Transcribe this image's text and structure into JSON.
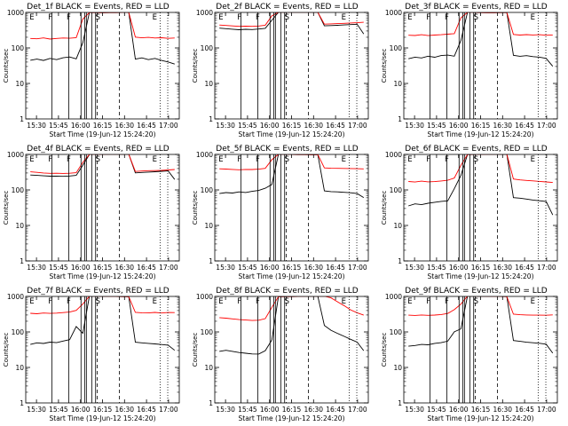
{
  "chart_data": [
    {
      "type": "line",
      "title": "Det_1f BLACK = Events, RED = LLD",
      "xlabel": "Start Time (19-Jun-12 15:24:20)",
      "ylabel": "Counts/sec",
      "x_ticks": [
        "15:30",
        "15:45",
        "16:00",
        "16:15",
        "16:30",
        "16:45",
        "17:00"
      ],
      "y_ticks": [
        "1",
        "10",
        "100",
        "1000"
      ],
      "ylim": [
        1,
        1000
      ],
      "y_scale": "log",
      "series": [
        {
          "color": "#000000",
          "values": [
            45,
            48,
            44,
            50,
            46,
            52,
            55,
            49,
            140,
            1000,
            1000,
            1000,
            1000,
            1000,
            1000,
            1000,
            48,
            52,
            46,
            50,
            44,
            40,
            35
          ]
        },
        {
          "color": "#ff0000",
          "values": [
            185,
            180,
            190,
            175,
            182,
            188,
            186,
            195,
            650,
            1000,
            1000,
            1000,
            1000,
            1000,
            1000,
            1000,
            200,
            190,
            195,
            188,
            192,
            185,
            190
          ]
        }
      ]
    },
    {
      "type": "line",
      "title": "Det_2f BLACK = Events, RED = LLD",
      "xlabel": "Start Time (19-Jun-12 15:24:20)",
      "ylabel": "Counts/sec",
      "x_ticks": [
        "15:30",
        "15:45",
        "16:00",
        "16:15",
        "16:30",
        "16:45",
        "17:00"
      ],
      "y_ticks": [
        "1",
        "10",
        "100",
        "1000"
      ],
      "ylim": [
        1,
        1000
      ],
      "y_scale": "log",
      "series": [
        {
          "color": "#000000",
          "values": [
            360,
            350,
            340,
            330,
            340,
            335,
            345,
            360,
            600,
            1000,
            1000,
            1000,
            1000,
            1000,
            1000,
            1000,
            420,
            430,
            440,
            450,
            460,
            470,
            250
          ]
        },
        {
          "color": "#ff0000",
          "values": [
            440,
            430,
            420,
            410,
            415,
            410,
            420,
            440,
            800,
            1000,
            1000,
            1000,
            1000,
            1000,
            1000,
            1000,
            470,
            480,
            490,
            500,
            510,
            520,
            530
          ]
        }
      ]
    },
    {
      "type": "line",
      "title": "Det_3f BLACK = Events, RED = LLD",
      "xlabel": "Start Time (19-Jun-12 15:24:20)",
      "ylabel": "Counts/sec",
      "x_ticks": [
        "15:30",
        "15:45",
        "16:00",
        "16:15",
        "16:30",
        "16:45",
        "17:00"
      ],
      "y_ticks": [
        "1",
        "10",
        "100",
        "1000"
      ],
      "ylim": [
        1,
        1000
      ],
      "y_scale": "log",
      "series": [
        {
          "color": "#000000",
          "values": [
            50,
            55,
            52,
            58,
            54,
            60,
            62,
            58,
            160,
            1000,
            1000,
            1000,
            1000,
            1000,
            1000,
            1000,
            62,
            58,
            60,
            56,
            54,
            50,
            30
          ]
        },
        {
          "color": "#ff0000",
          "values": [
            230,
            225,
            235,
            220,
            228,
            232,
            240,
            250,
            700,
            1000,
            1000,
            1000,
            1000,
            1000,
            1000,
            1000,
            240,
            230,
            235,
            228,
            232,
            225,
            230
          ]
        }
      ]
    },
    {
      "type": "line",
      "title": "Det_4f BLACK = Events, RED = LLD",
      "xlabel": "Start Time (19-Jun-12 15:24:20)",
      "ylabel": "Counts/sec",
      "x_ticks": [
        "15:30",
        "15:45",
        "16:00",
        "16:15",
        "16:30",
        "16:45",
        "17:00"
      ],
      "y_ticks": [
        "1",
        "10",
        "100",
        "1000"
      ],
      "ylim": [
        1,
        1000
      ],
      "y_scale": "log",
      "series": [
        {
          "color": "#000000",
          "values": [
            260,
            255,
            250,
            245,
            248,
            245,
            250,
            260,
            500,
            1000,
            1000,
            1000,
            1000,
            1000,
            1000,
            1000,
            300,
            310,
            320,
            330,
            340,
            350,
            200
          ]
        },
        {
          "color": "#ff0000",
          "values": [
            320,
            310,
            300,
            295,
            298,
            296,
            300,
            310,
            600,
            1000,
            1000,
            1000,
            1000,
            1000,
            1000,
            1000,
            330,
            340,
            350,
            355,
            360,
            370,
            380
          ]
        }
      ]
    },
    {
      "type": "line",
      "title": "Det_5f BLACK = Events, RED = LLD",
      "xlabel": "Start Time (19-Jun-12 15:24:20)",
      "ylabel": "Counts/sec",
      "x_ticks": [
        "15:30",
        "15:45",
        "16:00",
        "16:15",
        "16:30",
        "16:45",
        "17:00"
      ],
      "y_ticks": [
        "1",
        "10",
        "100",
        "1000"
      ],
      "ylim": [
        1,
        1000
      ],
      "y_scale": "log",
      "series": [
        {
          "color": "#000000",
          "values": [
            80,
            85,
            82,
            88,
            84,
            90,
            95,
            110,
            140,
            1000,
            1000,
            1000,
            1000,
            1000,
            1000,
            1000,
            95,
            90,
            88,
            85,
            82,
            78,
            60
          ]
        },
        {
          "color": "#ff0000",
          "values": [
            400,
            390,
            380,
            370,
            375,
            372,
            380,
            400,
            700,
            1000,
            1000,
            1000,
            1000,
            1000,
            1000,
            1000,
            420,
            410,
            405,
            400,
            395,
            390,
            385
          ]
        }
      ]
    },
    {
      "type": "line",
      "title": "Det_6f BLACK = Events, RED = LLD",
      "xlabel": "Start Time (19-Jun-12 15:24:20)",
      "ylabel": "Counts/sec",
      "x_ticks": [
        "15:30",
        "15:45",
        "16:00",
        "16:15",
        "16:30",
        "16:45",
        "17:00"
      ],
      "y_ticks": [
        "1",
        "10",
        "100",
        "1000"
      ],
      "ylim": [
        1,
        1000
      ],
      "y_scale": "log",
      "series": [
        {
          "color": "#000000",
          "values": [
            35,
            40,
            38,
            42,
            45,
            48,
            50,
            110,
            260,
            1000,
            1000,
            1000,
            1000,
            1000,
            1000,
            1000,
            60,
            58,
            55,
            52,
            50,
            48,
            20
          ]
        },
        {
          "color": "#ff0000",
          "values": [
            170,
            165,
            175,
            168,
            172,
            180,
            190,
            220,
            500,
            1000,
            1000,
            1000,
            1000,
            1000,
            1000,
            1000,
            200,
            190,
            185,
            180,
            175,
            170,
            165
          ]
        }
      ]
    },
    {
      "type": "line",
      "title": "Det_7f BLACK = Events, RED = LLD",
      "xlabel": "Start Time (19-Jun-12 15:24:20)",
      "ylabel": "Counts/sec",
      "x_ticks": [
        "15:30",
        "15:45",
        "16:00",
        "16:15",
        "16:30",
        "16:45",
        "17:00"
      ],
      "y_ticks": [
        "1",
        "10",
        "100",
        "1000"
      ],
      "ylim": [
        1,
        1000
      ],
      "y_scale": "log",
      "series": [
        {
          "color": "#000000",
          "values": [
            45,
            50,
            48,
            52,
            50,
            55,
            60,
            140,
            90,
            1000,
            1000,
            1000,
            1000,
            1000,
            1000,
            1000,
            52,
            50,
            48,
            46,
            44,
            42,
            30
          ]
        },
        {
          "color": "#ff0000",
          "values": [
            340,
            330,
            345,
            335,
            340,
            350,
            360,
            400,
            600,
            1000,
            1000,
            1000,
            1000,
            1000,
            1000,
            1000,
            360,
            350,
            345,
            355,
            340,
            350,
            345
          ]
        }
      ]
    },
    {
      "type": "line",
      "title": "Det_8f BLACK = Events, RED = LLD",
      "xlabel": "Start Time (19-Jun-12 15:24:20)",
      "ylabel": "Counts/sec",
      "x_ticks": [
        "15:30",
        "15:45",
        "16:00",
        "16:15",
        "16:30",
        "16:45",
        "17:00"
      ],
      "y_ticks": [
        "1",
        "10",
        "100",
        "1000"
      ],
      "ylim": [
        1,
        1000
      ],
      "y_scale": "log",
      "series": [
        {
          "color": "#000000",
          "values": [
            28,
            30,
            28,
            26,
            25,
            24,
            24,
            30,
            60,
            1000,
            1000,
            1000,
            1000,
            1000,
            1000,
            1000,
            150,
            110,
            90,
            75,
            62,
            52,
            30
          ]
        },
        {
          "color": "#ff0000",
          "values": [
            250,
            240,
            230,
            220,
            215,
            210,
            215,
            240,
            500,
            1000,
            1000,
            1000,
            1000,
            1000,
            1000,
            1000,
            1000,
            900,
            700,
            550,
            420,
            350,
            300
          ]
        }
      ]
    },
    {
      "type": "line",
      "title": "Det_9f BLACK = Events, RED = LLD",
      "xlabel": "Start Time (19-Jun-12 15:24:20)",
      "ylabel": "Counts/sec",
      "x_ticks": [
        "15:30",
        "15:45",
        "16:00",
        "16:15",
        "16:30",
        "16:45",
        "17:00"
      ],
      "y_ticks": [
        "1",
        "10",
        "100",
        "1000"
      ],
      "ylim": [
        1,
        1000
      ],
      "y_scale": "log",
      "series": [
        {
          "color": "#000000",
          "values": [
            40,
            42,
            45,
            44,
            48,
            50,
            55,
            100,
            120,
            1000,
            1000,
            1000,
            1000,
            1000,
            1000,
            1000,
            58,
            55,
            52,
            50,
            48,
            45,
            25
          ]
        },
        {
          "color": "#ff0000",
          "values": [
            300,
            295,
            305,
            298,
            302,
            310,
            330,
            420,
            600,
            1000,
            1000,
            1000,
            1000,
            1000,
            1000,
            1000,
            320,
            310,
            305,
            300,
            298,
            295,
            300
          ]
        }
      ]
    }
  ],
  "markers": {
    "saa": "S",
    "eclipse": "E",
    "flare": "F"
  }
}
